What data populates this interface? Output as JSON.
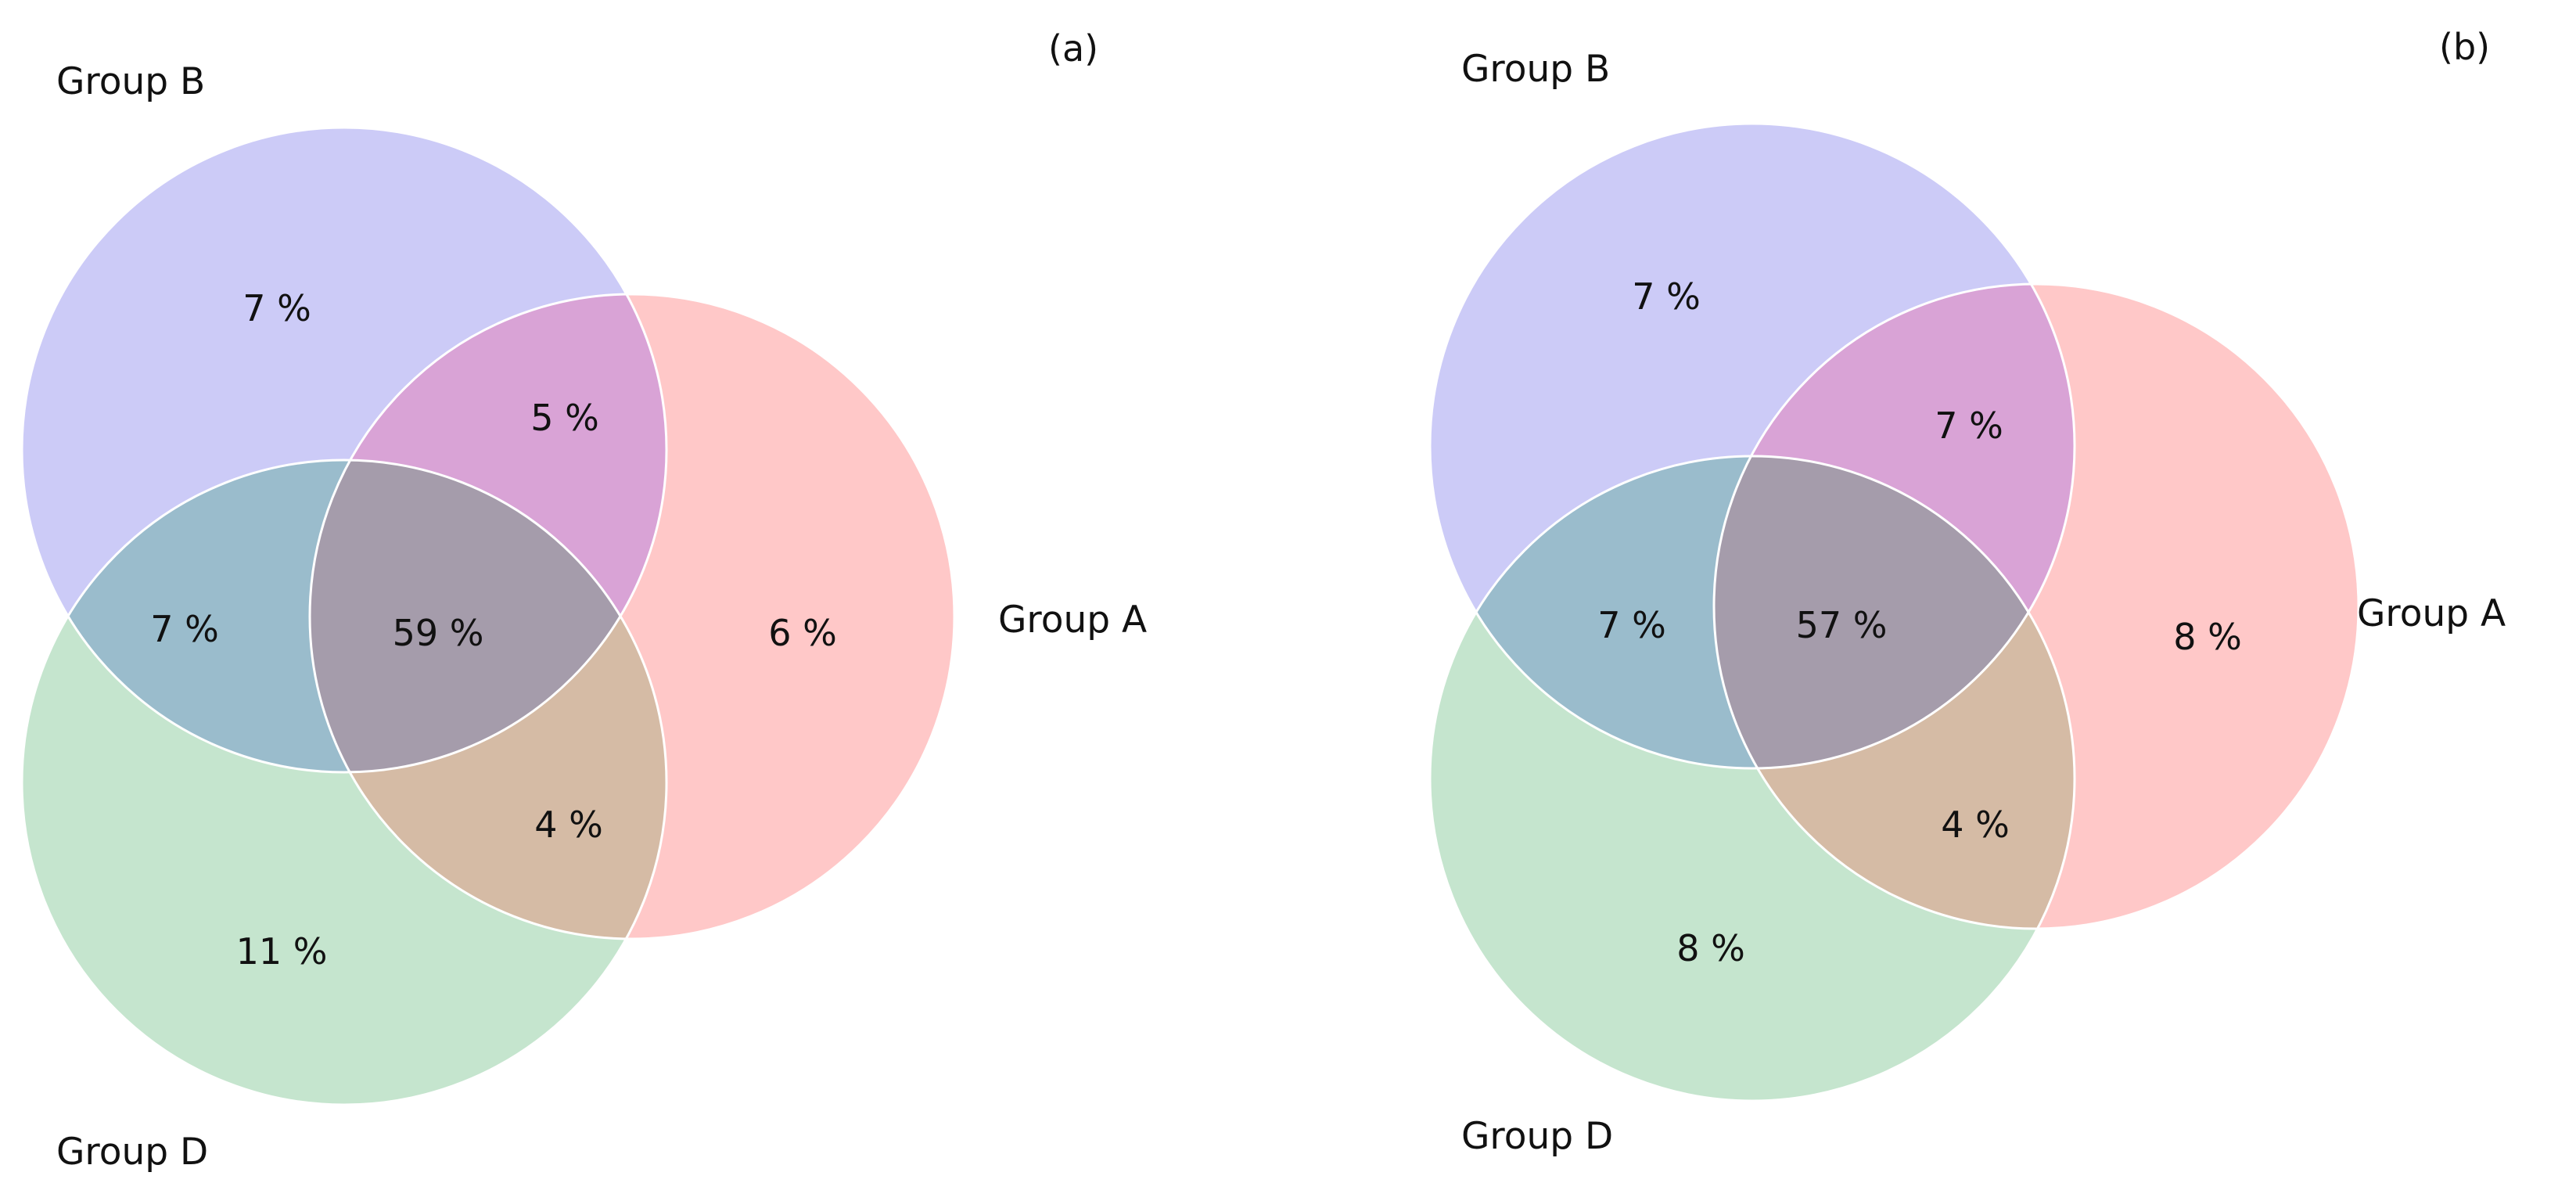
{
  "colors": {
    "group_a_fill": "#ffc8c8",
    "group_b_fill": "#cccbf7",
    "group_d_fill": "#c5e5ce",
    "a_b_overlap": "#d9a3d6",
    "b_d_overlap": "#9abccc",
    "a_d_overlap": "#d5bba5",
    "all_three_overlap": "#a59cab",
    "outline": "#ffffff",
    "text": "#111111"
  },
  "panels": [
    {
      "tag": "(a)",
      "group_labels": {
        "a": "Group A",
        "b": "Group B",
        "d": "Group D"
      },
      "regions": {
        "b_only": "7 %",
        "a_b": "5 %",
        "b_d": "7 %",
        "a_b_d": "59 %",
        "a_only": "6 %",
        "a_d": "4 %",
        "d_only": "11 %"
      }
    },
    {
      "tag": "(b)",
      "group_labels": {
        "a": "Group A",
        "b": "Group B",
        "d": "Group D"
      },
      "regions": {
        "b_only": "7 %",
        "a_b": "7 %",
        "b_d": "7 %",
        "a_b_d": "57 %",
        "a_only": "8 %",
        "a_d": "4 %",
        "d_only": "8 %"
      }
    }
  ]
}
